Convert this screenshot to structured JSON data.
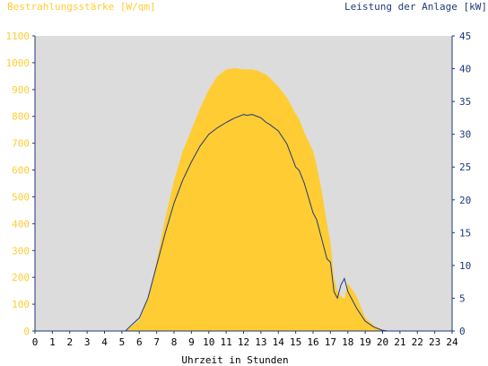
{
  "chart_data": {
    "type": "area",
    "left_title": "Bestrahlungsstärke [W/qm]",
    "right_title": "Leistung der Anlage [kW]",
    "xlabel": "Uhrzeit in Stunden",
    "xlim": [
      0,
      24
    ],
    "x_ticks": [
      "0",
      "1",
      "2",
      "3",
      "4",
      "5",
      "6",
      "7",
      "8",
      "9",
      "10",
      "11",
      "12",
      "13",
      "14",
      "15",
      "16",
      "17",
      "18",
      "19",
      "20",
      "21",
      "22",
      "23",
      "24"
    ],
    "y_left_lim": [
      0,
      1100
    ],
    "y_left_ticks": [
      "0",
      "100",
      "200",
      "300",
      "400",
      "500",
      "600",
      "700",
      "800",
      "900",
      "1000",
      "1100"
    ],
    "y_right_lim": [
      0,
      45
    ],
    "y_right_ticks": [
      "0",
      "5",
      "10",
      "15",
      "20",
      "25",
      "30",
      "35",
      "40",
      "45"
    ],
    "grid": false,
    "colors": {
      "plot_bg": "#dcdcdc",
      "irradiance": "#ffcc33",
      "power": "#1f3a7a",
      "axis": "#1f3a7a",
      "left_text": "#ffcc33"
    },
    "series": [
      {
        "name": "Bestrahlungsstärke",
        "axis": "left",
        "kind": "area",
        "x": [
          5.2,
          5.5,
          6,
          6.5,
          7,
          7.5,
          8,
          8.5,
          9,
          9.5,
          10,
          10.5,
          11,
          11.5,
          12,
          12.3,
          12.5,
          12.8,
          13,
          13.3,
          13.5,
          14,
          14.5,
          15,
          15.2,
          15.5,
          16,
          16.2,
          16.5,
          16.8,
          17,
          17.2,
          17.4,
          17.6,
          17.8,
          18,
          18.5,
          19,
          19.5,
          20,
          20.3
        ],
        "y": [
          0,
          15,
          40,
          120,
          260,
          420,
          560,
          670,
          750,
          830,
          900,
          950,
          975,
          980,
          975,
          975,
          975,
          970,
          965,
          955,
          945,
          910,
          870,
          810,
          790,
          740,
          670,
          620,
          520,
          400,
          330,
          200,
          150,
          130,
          120,
          180,
          130,
          50,
          20,
          5,
          0
        ]
      },
      {
        "name": "Leistung",
        "axis": "right",
        "kind": "line",
        "x": [
          5.2,
          5.5,
          6,
          6.5,
          7,
          7.5,
          8,
          8.5,
          9,
          9.5,
          10,
          10.5,
          11,
          11.5,
          12,
          12.2,
          12.5,
          12.8,
          13,
          13.3,
          13.5,
          14,
          14.5,
          15,
          15.2,
          15.5,
          16,
          16.2,
          16.5,
          16.8,
          17,
          17.2,
          17.4,
          17.6,
          17.8,
          18,
          18.5,
          19,
          19.5,
          20,
          20.3
        ],
        "y": [
          0,
          0.8,
          2,
          5,
          10,
          15,
          19.5,
          23,
          25.8,
          28.2,
          30,
          31,
          31.8,
          32.5,
          33,
          32.9,
          33,
          32.7,
          32.5,
          31.8,
          31.5,
          30.5,
          28.5,
          25,
          24.5,
          22.5,
          18,
          17,
          14,
          11,
          10.5,
          6,
          5,
          7,
          8,
          6,
          3.5,
          1.5,
          0.6,
          0.1,
          0
        ]
      }
    ]
  }
}
